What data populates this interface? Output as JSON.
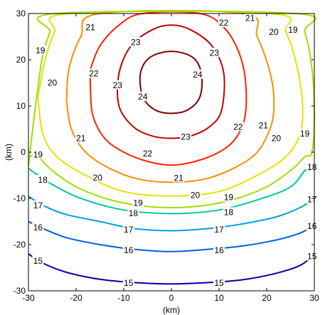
{
  "chart_data": {
    "type": "contour",
    "title": "",
    "xlabel": "(km)",
    "ylabel": "(km)",
    "xlim": [
      -30,
      30
    ],
    "ylim": [
      -30,
      30
    ],
    "xticks": [
      "-30",
      "-20",
      "-10",
      "0",
      "10",
      "20",
      "30"
    ],
    "yticks": [
      "-30",
      "-20",
      "-10",
      "0",
      "10",
      "20",
      "30"
    ],
    "grid": false,
    "levels": [
      {
        "value": "24",
        "color": "#7f0000",
        "points": [
          [
            -6,
            12
          ],
          [
            -6.5,
            17
          ],
          [
            -4.5,
            20.5
          ],
          [
            0,
            21.8
          ],
          [
            4.5,
            20.5
          ],
          [
            6.3,
            17
          ],
          [
            6,
            12
          ],
          [
            3.5,
            9.2
          ],
          [
            0,
            8.4
          ],
          [
            -3.5,
            9.2
          ]
        ],
        "closed": true,
        "labels": [
          [
            -6,
            12
          ],
          [
            5.5,
            16.8
          ]
        ]
      },
      {
        "value": "23",
        "color": "#c00000",
        "points": [
          [
            -11,
            10
          ],
          [
            -11,
            17
          ],
          [
            -8.5,
            23
          ],
          [
            -4,
            26.5
          ],
          [
            0,
            27.5
          ],
          [
            4,
            26.5
          ],
          [
            8.5,
            23
          ],
          [
            11,
            17
          ],
          [
            10.5,
            9
          ],
          [
            8,
            5.5
          ],
          [
            4,
            3.5
          ],
          [
            0,
            3
          ],
          [
            -4,
            3.5
          ],
          [
            -8,
            5.5
          ]
        ],
        "closed": true,
        "labels": [
          [
            -7.5,
            23.8
          ],
          [
            -11.3,
            14.5
          ],
          [
            9,
            21.5
          ],
          [
            3,
            3.3
          ]
        ]
      },
      {
        "value": "22",
        "color": "#ff2000",
        "points": [
          [
            -17,
            18
          ],
          [
            -15,
            23
          ],
          [
            -11,
            27.5
          ],
          [
            -6,
            30
          ],
          [
            6,
            30
          ],
          [
            11,
            27
          ],
          [
            14,
            22
          ],
          [
            15.5,
            16
          ],
          [
            15.5,
            8
          ],
          [
            13.5,
            3
          ],
          [
            10,
            0
          ],
          [
            5,
            -2
          ],
          [
            0,
            -2.8
          ],
          [
            -5,
            -2
          ],
          [
            -10,
            0
          ],
          [
            -14,
            3
          ],
          [
            -16.5,
            8
          ],
          [
            -17,
            14
          ],
          [
            -17,
            18
          ]
        ],
        "closed": false,
        "labels": [
          [
            -16.3,
            17
          ],
          [
            11,
            28
          ],
          [
            14,
            5.5
          ],
          [
            -5,
            -0.3
          ]
        ]
      },
      {
        "value": "21",
        "color": "#ff8c00",
        "points": [
          [
            -22,
            11
          ],
          [
            -21.5,
            18
          ],
          [
            -19,
            25
          ],
          [
            -15,
            30
          ],
          [
            15,
            30
          ],
          [
            18,
            25
          ],
          [
            20.5,
            18
          ],
          [
            21.5,
            12
          ],
          [
            21,
            6
          ],
          [
            18,
            0
          ],
          [
            13,
            -3.5
          ],
          [
            7,
            -5.8
          ],
          [
            0,
            -6.5
          ],
          [
            -7,
            -5.8
          ],
          [
            -13,
            -3.5
          ],
          [
            -18,
            0
          ],
          [
            -21,
            5
          ],
          [
            -22,
            11
          ]
        ],
        "closed": false,
        "labels": [
          [
            -17,
            27
          ],
          [
            16.5,
            29
          ],
          [
            19.3,
            5.8
          ],
          [
            -19,
            3
          ],
          [
            1.5,
            -5.6
          ]
        ]
      },
      {
        "value": "20",
        "color": "#e8e000",
        "points": [
          [
            -28,
            12
          ],
          [
            -26.5,
            20
          ],
          [
            -24.5,
            26
          ],
          [
            -21.5,
            30
          ],
          [
            21,
            30
          ],
          [
            24,
            26
          ],
          [
            26,
            20
          ],
          [
            27.5,
            11
          ],
          [
            27,
            4
          ],
          [
            24,
            -1
          ],
          [
            18,
            -5
          ],
          [
            10,
            -8.5
          ],
          [
            0,
            -9.5
          ],
          [
            -10,
            -8.5
          ],
          [
            -18,
            -5
          ],
          [
            -24,
            -1
          ],
          [
            -27,
            4
          ],
          [
            -28,
            12
          ]
        ],
        "closed": false,
        "labels": [
          [
            -25,
            15
          ],
          [
            21.5,
            26
          ],
          [
            22,
            3
          ],
          [
            -15.5,
            -5.5
          ],
          [
            5,
            -9.3
          ]
        ]
      },
      {
        "value": "19",
        "color": "#9ee000",
        "points": [
          [
            -30,
            -3
          ],
          [
            -29,
            6
          ],
          [
            -28,
            14
          ],
          [
            -27,
            21
          ],
          [
            -25.5,
            26
          ],
          [
            -24,
            30
          ],
          [
            26,
            30
          ],
          [
            28,
            26
          ],
          [
            29.5,
            18
          ],
          [
            30,
            8
          ],
          [
            29.5,
            0
          ],
          [
            28,
            -1
          ],
          [
            25,
            -4
          ],
          [
            19,
            -8
          ],
          [
            10,
            -11
          ],
          [
            0,
            -12
          ],
          [
            -10,
            -11
          ],
          [
            -19,
            -8
          ],
          [
            -25,
            -4
          ],
          [
            -28,
            -1
          ],
          [
            -30,
            -1
          ]
        ],
        "closed": false,
        "labels": [
          [
            -27.5,
            22
          ],
          [
            25.5,
            26.5
          ],
          [
            28,
            4
          ],
          [
            -28,
            -0.5
          ],
          [
            -7,
            -11
          ],
          [
            12,
            -9.8
          ]
        ]
      },
      {
        "value": "18",
        "color": "#00c8a0",
        "points": [
          [
            -30,
            -3.5
          ],
          [
            -28,
            -5
          ],
          [
            -25,
            -7
          ],
          [
            -19,
            -10
          ],
          [
            -10,
            -12.5
          ],
          [
            0,
            -13.3
          ],
          [
            10,
            -12.5
          ],
          [
            19,
            -10
          ],
          [
            25,
            -7.5
          ],
          [
            28,
            -4
          ],
          [
            30,
            -2.5
          ]
        ],
        "closed": false,
        "labels": [
          [
            -27,
            -6
          ],
          [
            -8,
            -13.2
          ],
          [
            12,
            -13
          ],
          [
            29.5,
            -3.2
          ]
        ]
      },
      {
        "value": "17",
        "color": "#00a0e0",
        "points": [
          [
            -30,
            -9.5
          ],
          [
            -27,
            -11.5
          ],
          [
            -22,
            -13.5
          ],
          [
            -15,
            -15
          ],
          [
            -8,
            -16.5
          ],
          [
            0,
            -17
          ],
          [
            8,
            -16.5
          ],
          [
            15,
            -15.5
          ],
          [
            22,
            -14
          ],
          [
            27,
            -12
          ],
          [
            30,
            -10
          ]
        ],
        "closed": false,
        "labels": [
          [
            -28,
            -11.5
          ],
          [
            -9,
            -16.8
          ],
          [
            10,
            -16.8
          ],
          [
            29.5,
            -10.2
          ]
        ]
      },
      {
        "value": "16",
        "color": "#0060e0",
        "points": [
          [
            -30,
            -15
          ],
          [
            -27,
            -16.5
          ],
          [
            -22,
            -18.5
          ],
          [
            -15,
            -20
          ],
          [
            -8,
            -21
          ],
          [
            0,
            -21.5
          ],
          [
            8,
            -21
          ],
          [
            15,
            -20.3
          ],
          [
            22,
            -19
          ],
          [
            27,
            -17.5
          ],
          [
            30,
            -15.8
          ]
        ],
        "closed": false,
        "labels": [
          [
            -28,
            -16.3
          ],
          [
            -9,
            -21.2
          ],
          [
            10,
            -21.2
          ],
          [
            29.5,
            -16
          ]
        ]
      },
      {
        "value": "15",
        "color": "#0000b0",
        "points": [
          [
            -30,
            -22
          ],
          [
            -27,
            -24
          ],
          [
            -22,
            -26
          ],
          [
            -15,
            -27.5
          ],
          [
            -8,
            -28.2
          ],
          [
            0,
            -28.5
          ],
          [
            8,
            -28.2
          ],
          [
            15,
            -27.6
          ],
          [
            22,
            -26.2
          ],
          [
            27,
            -24.5
          ],
          [
            30,
            -22.2
          ]
        ],
        "closed": false,
        "labels": [
          [
            -28,
            -23.5
          ],
          [
            -9,
            -28.3
          ],
          [
            10,
            -28.3
          ],
          [
            29.5,
            -22.5
          ]
        ]
      }
    ]
  }
}
